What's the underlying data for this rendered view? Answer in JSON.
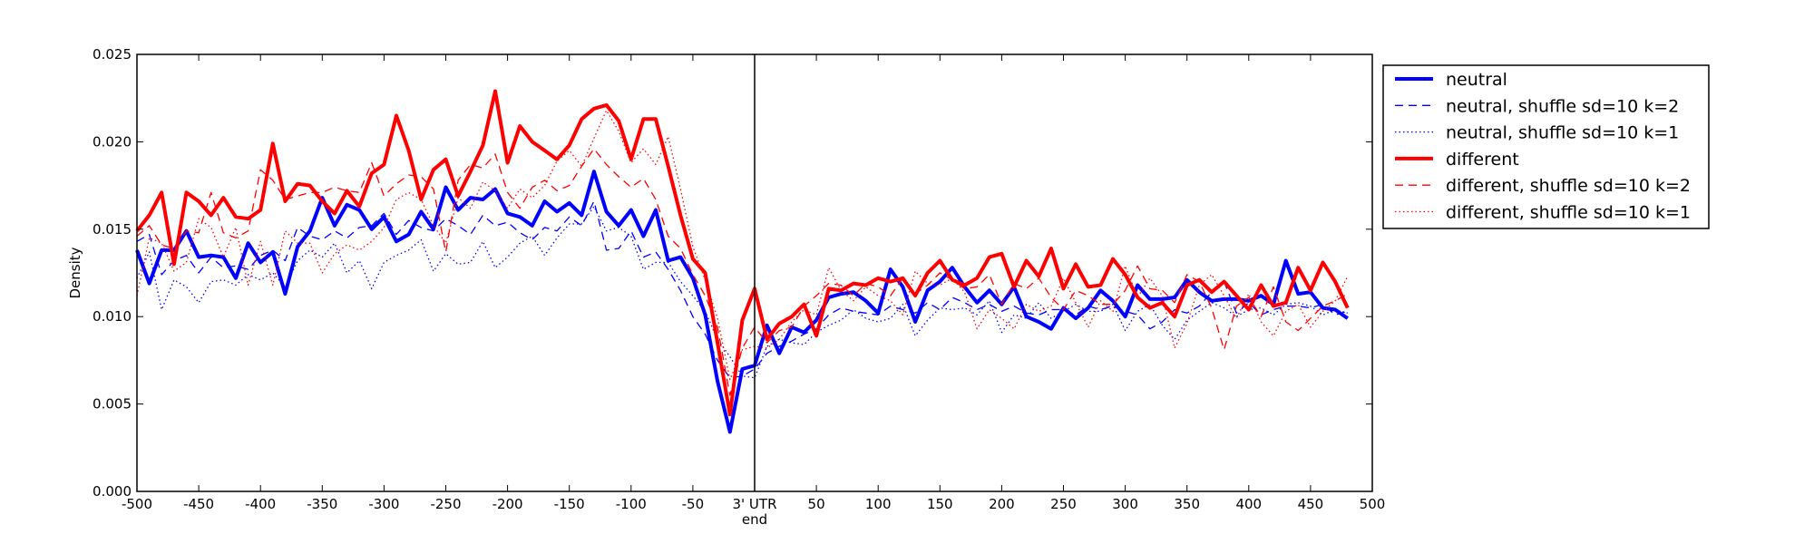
{
  "chart_data": {
    "type": "line",
    "title": "",
    "xlabel": "",
    "ylabel": "Density",
    "xlim": [
      -500,
      500
    ],
    "ylim": [
      0,
      0.025
    ],
    "grid": false,
    "legend_position": "outside-top-right",
    "center_label": [
      "3' UTR",
      "end"
    ],
    "xticks": [
      -500,
      -450,
      -400,
      -350,
      -300,
      -250,
      -200,
      -150,
      -100,
      -50,
      0,
      50,
      100,
      150,
      200,
      250,
      300,
      350,
      400,
      450,
      500
    ],
    "xtick_labels": [
      "-500",
      "-450",
      "-400",
      "-350",
      "-300",
      "-250",
      "-200",
      "-150",
      "-100",
      "-50",
      "",
      "50",
      "100",
      "150",
      "200",
      "250",
      "300",
      "350",
      "400",
      "450",
      "500"
    ],
    "yticks": [
      0,
      0.005,
      0.01,
      0.015,
      0.02,
      0.025
    ],
    "ytick_labels": [
      "0.000",
      "0.005",
      "0.010",
      "0.015",
      "0.020",
      "0.025"
    ],
    "vline_x": 0,
    "x_start": -500,
    "x_step": 10,
    "series": [
      {
        "name": "neutral",
        "color": "#0000ff",
        "style": "solid",
        "width": 4,
        "values": [
          0.0138,
          0.0119,
          0.0138,
          0.0138,
          0.0149,
          0.0134,
          0.0135,
          0.0134,
          0.0122,
          0.0142,
          0.0131,
          0.0137,
          0.0113,
          0.014,
          0.0149,
          0.0168,
          0.0152,
          0.0164,
          0.0161,
          0.015,
          0.0157,
          0.0143,
          0.0147,
          0.016,
          0.015,
          0.0174,
          0.0161,
          0.0168,
          0.0167,
          0.0173,
          0.0159,
          0.0157,
          0.0152,
          0.0166,
          0.016,
          0.0165,
          0.0158,
          0.0183,
          0.016,
          0.0152,
          0.0161,
          0.0146,
          0.0161,
          0.0132,
          0.0134,
          0.0122,
          0.0101,
          0.0063,
          0.0034,
          0.007,
          0.0072,
          0.0095,
          0.0079,
          0.0094,
          0.0091,
          0.0098,
          0.0111,
          0.0113,
          0.0114,
          0.0109,
          0.0102,
          0.0127,
          0.0117,
          0.0097,
          0.0115,
          0.012,
          0.0128,
          0.0117,
          0.0108,
          0.0115,
          0.0107,
          0.0117,
          0.01,
          0.0097,
          0.0093,
          0.0105,
          0.0099,
          0.0105,
          0.0115,
          0.0109,
          0.01,
          0.0118,
          0.011,
          0.011,
          0.0111,
          0.0121,
          0.0114,
          0.0109,
          0.011,
          0.011,
          0.0109,
          0.0112,
          0.0107,
          0.0132,
          0.0113,
          0.0114,
          0.0105,
          0.0104,
          0.0099
        ]
      },
      {
        "name": "neutral, shuffle sd=10 k=2",
        "color": "#0000ff",
        "style": "dashed",
        "width": 1.3,
        "values": [
          0.0143,
          0.0147,
          0.0124,
          0.0132,
          0.0135,
          0.0125,
          0.0134,
          0.0128,
          0.0129,
          0.0127,
          0.0135,
          0.0138,
          0.0132,
          0.0151,
          0.0146,
          0.0144,
          0.0149,
          0.0145,
          0.0151,
          0.0152,
          0.0159,
          0.0147,
          0.0155,
          0.0151,
          0.0149,
          0.0156,
          0.0152,
          0.0147,
          0.0158,
          0.0152,
          0.0154,
          0.0148,
          0.0144,
          0.0151,
          0.0149,
          0.0157,
          0.0152,
          0.0166,
          0.0138,
          0.0139,
          0.0149,
          0.0134,
          0.0137,
          0.0127,
          0.0115,
          0.01,
          0.009,
          0.0075,
          0.0065,
          0.0066,
          0.007,
          0.0079,
          0.0083,
          0.0086,
          0.009,
          0.0093,
          0.0101,
          0.0105,
          0.0103,
          0.0102,
          0.0101,
          0.0106,
          0.0104,
          0.0102,
          0.0108,
          0.0104,
          0.0111,
          0.0108,
          0.0104,
          0.0107,
          0.0103,
          0.0106,
          0.0102,
          0.0101,
          0.0104,
          0.0104,
          0.0101,
          0.0106,
          0.0104,
          0.0106,
          0.0103,
          0.0101,
          0.0093,
          0.0097,
          0.0104,
          0.0102,
          0.0106,
          0.0114,
          0.012,
          0.0102,
          0.0108,
          0.0101,
          0.0104,
          0.0106,
          0.0106,
          0.0105,
          0.0107,
          0.0101,
          0.0103
        ]
      },
      {
        "name": "neutral, shuffle sd=10 k=1",
        "color": "#0000ff",
        "style": "dotted",
        "width": 1.3,
        "values": [
          0.0122,
          0.0137,
          0.0104,
          0.0121,
          0.0117,
          0.0108,
          0.012,
          0.0121,
          0.0118,
          0.0124,
          0.0121,
          0.0125,
          0.0117,
          0.0132,
          0.0138,
          0.0134,
          0.0142,
          0.0125,
          0.0132,
          0.0116,
          0.0131,
          0.0135,
          0.0138,
          0.0144,
          0.0126,
          0.0136,
          0.013,
          0.0131,
          0.0143,
          0.0128,
          0.0134,
          0.0142,
          0.0146,
          0.0135,
          0.0145,
          0.0153,
          0.0153,
          0.0163,
          0.0149,
          0.0151,
          0.0146,
          0.0127,
          0.0131,
          0.0131,
          0.012,
          0.0112,
          0.0103,
          0.0087,
          0.0077,
          0.0066,
          0.0065,
          0.0083,
          0.0087,
          0.0085,
          0.0084,
          0.0091,
          0.0095,
          0.0098,
          0.0104,
          0.0099,
          0.0097,
          0.0099,
          0.0107,
          0.0089,
          0.0098,
          0.0105,
          0.0104,
          0.0105,
          0.0101,
          0.0109,
          0.0091,
          0.0101,
          0.0099,
          0.0108,
          0.0099,
          0.0103,
          0.0107,
          0.0103,
          0.0103,
          0.0107,
          0.0092,
          0.0103,
          0.0107,
          0.0095,
          0.0087,
          0.0098,
          0.0103,
          0.0108,
          0.0105,
          0.01,
          0.0104,
          0.0105,
          0.0101,
          0.0107,
          0.0108,
          0.0106,
          0.0101,
          0.0104,
          0.0102
        ]
      },
      {
        "name": "different",
        "color": "#ff0000",
        "style": "solid",
        "width": 4,
        "values": [
          0.0149,
          0.0158,
          0.0171,
          0.013,
          0.0171,
          0.0166,
          0.0158,
          0.0168,
          0.0157,
          0.0156,
          0.0161,
          0.0199,
          0.0166,
          0.0176,
          0.0175,
          0.0166,
          0.0159,
          0.0172,
          0.0163,
          0.0182,
          0.0187,
          0.0215,
          0.0195,
          0.0167,
          0.0184,
          0.019,
          0.0169,
          0.0183,
          0.0198,
          0.0229,
          0.0188,
          0.0209,
          0.02,
          0.0195,
          0.019,
          0.0198,
          0.0213,
          0.0219,
          0.0221,
          0.0212,
          0.019,
          0.0213,
          0.0213,
          0.0186,
          0.0158,
          0.0133,
          0.0125,
          0.0085,
          0.0044,
          0.0098,
          0.0116,
          0.0087,
          0.0096,
          0.01,
          0.0107,
          0.0089,
          0.0116,
          0.0115,
          0.0119,
          0.0118,
          0.0122,
          0.012,
          0.0122,
          0.0112,
          0.0125,
          0.0132,
          0.0121,
          0.0118,
          0.0122,
          0.0134,
          0.0136,
          0.0117,
          0.0132,
          0.0123,
          0.0139,
          0.0116,
          0.013,
          0.0117,
          0.0118,
          0.0133,
          0.0124,
          0.0111,
          0.0105,
          0.0108,
          0.01,
          0.0118,
          0.0121,
          0.0114,
          0.012,
          0.0112,
          0.0104,
          0.0118,
          0.0106,
          0.0108,
          0.0128,
          0.0115,
          0.0131,
          0.012,
          0.0105
        ]
      },
      {
        "name": "different, shuffle sd=10 k=2",
        "color": "#ff0000",
        "style": "dashed",
        "width": 1.3,
        "values": [
          0.0146,
          0.0152,
          0.0141,
          0.0139,
          0.0149,
          0.0148,
          0.0171,
          0.0148,
          0.0145,
          0.0149,
          0.0184,
          0.0178,
          0.0167,
          0.0169,
          0.0171,
          0.0171,
          0.0174,
          0.0172,
          0.0171,
          0.0188,
          0.0169,
          0.0176,
          0.0181,
          0.018,
          0.0173,
          0.0137,
          0.0178,
          0.0187,
          0.0185,
          0.0193,
          0.0171,
          0.0162,
          0.0174,
          0.0178,
          0.0172,
          0.0175,
          0.0186,
          0.0196,
          0.0187,
          0.018,
          0.0174,
          0.0179,
          0.0167,
          0.0146,
          0.0139,
          0.0124,
          0.0112,
          0.0094,
          0.0055,
          0.0082,
          0.0094,
          0.0085,
          0.0092,
          0.0094,
          0.0106,
          0.0112,
          0.0119,
          0.0118,
          0.0112,
          0.0119,
          0.0117,
          0.0112,
          0.0122,
          0.0113,
          0.0118,
          0.0125,
          0.0121,
          0.0116,
          0.0117,
          0.0124,
          0.0107,
          0.0119,
          0.0116,
          0.0122,
          0.0111,
          0.0104,
          0.0115,
          0.0112,
          0.0107,
          0.0107,
          0.0115,
          0.0129,
          0.0116,
          0.0115,
          0.0108,
          0.0124,
          0.012,
          0.0105,
          0.0081,
          0.0106,
          0.0111,
          0.01,
          0.0117,
          0.0097,
          0.0092,
          0.0099,
          0.0106,
          0.0109,
          0.0113
        ]
      },
      {
        "name": "different, shuffle sd=10 k=1",
        "color": "#ff0000",
        "style": "dotted",
        "width": 1.3,
        "values": [
          0.0112,
          0.0145,
          0.0142,
          0.0126,
          0.0131,
          0.0156,
          0.0151,
          0.0134,
          0.0151,
          0.0118,
          0.0143,
          0.0118,
          0.0149,
          0.0142,
          0.0142,
          0.0125,
          0.0136,
          0.0141,
          0.0138,
          0.0143,
          0.0151,
          0.0167,
          0.0171,
          0.0167,
          0.0152,
          0.0142,
          0.0168,
          0.0162,
          0.0177,
          0.0172,
          0.0162,
          0.0173,
          0.0168,
          0.0175,
          0.0189,
          0.0195,
          0.0186,
          0.0202,
          0.0218,
          0.0206,
          0.0188,
          0.0196,
          0.0187,
          0.0203,
          0.0173,
          0.014,
          0.0121,
          0.0099,
          0.0064,
          0.0081,
          0.0083,
          0.0082,
          0.0087,
          0.0097,
          0.0104,
          0.0101,
          0.0128,
          0.0115,
          0.0109,
          0.0117,
          0.0112,
          0.0109,
          0.0101,
          0.0126,
          0.0119,
          0.0118,
          0.0122,
          0.0114,
          0.0093,
          0.0104,
          0.0099,
          0.0093,
          0.0107,
          0.0103,
          0.0106,
          0.0122,
          0.0108,
          0.0094,
          0.0109,
          0.0103,
          0.0129,
          0.0111,
          0.0122,
          0.0112,
          0.0082,
          0.0096,
          0.0118,
          0.0124,
          0.0112,
          0.0099,
          0.0113,
          0.0097,
          0.0089,
          0.0103,
          0.0107,
          0.0094,
          0.0103,
          0.0109,
          0.0123
        ]
      }
    ]
  }
}
